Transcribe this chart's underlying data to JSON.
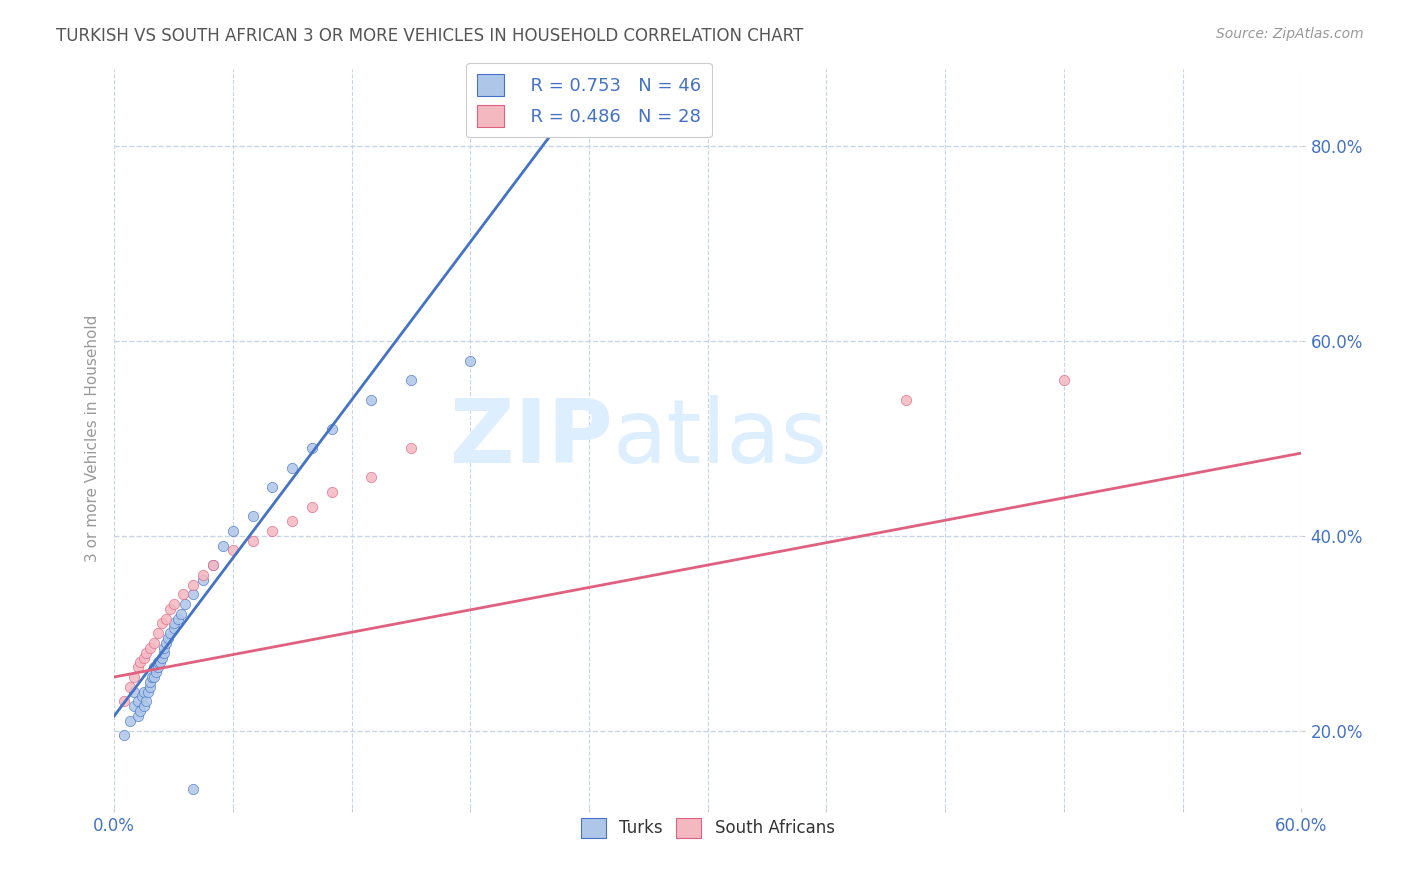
{
  "title": "TURKISH VS SOUTH AFRICAN 3 OR MORE VEHICLES IN HOUSEHOLD CORRELATION CHART",
  "source": "Source: ZipAtlas.com",
  "ylabel": "3 or more Vehicles in Household",
  "xlim": [
    0.0,
    0.6
  ],
  "ylim": [
    0.12,
    0.88
  ],
  "xticks": [
    0.0,
    0.06,
    0.12,
    0.18,
    0.24,
    0.3,
    0.36,
    0.42,
    0.48,
    0.54,
    0.6
  ],
  "yticks": [
    0.2,
    0.4,
    0.6,
    0.8
  ],
  "ytick_labels": [
    "20.0%",
    "40.0%",
    "60.0%",
    "80.0%"
  ],
  "xtick_labels_show": [
    "0.0%",
    "60.0%"
  ],
  "legend_r1": "R = 0.753",
  "legend_n1": "N = 46",
  "legend_r2": "R = 0.486",
  "legend_n2": "N = 28",
  "turks_x": [
    0.005,
    0.008,
    0.01,
    0.01,
    0.012,
    0.012,
    0.013,
    0.014,
    0.015,
    0.015,
    0.016,
    0.017,
    0.018,
    0.018,
    0.019,
    0.02,
    0.02,
    0.021,
    0.022,
    0.022,
    0.023,
    0.024,
    0.025,
    0.025,
    0.026,
    0.027,
    0.028,
    0.03,
    0.03,
    0.032,
    0.034,
    0.036,
    0.04,
    0.045,
    0.05,
    0.055,
    0.06,
    0.07,
    0.08,
    0.09,
    0.1,
    0.11,
    0.13,
    0.15,
    0.18,
    0.04
  ],
  "turks_y": [
    0.195,
    0.21,
    0.225,
    0.24,
    0.215,
    0.23,
    0.22,
    0.235,
    0.225,
    0.24,
    0.23,
    0.24,
    0.245,
    0.25,
    0.255,
    0.255,
    0.265,
    0.26,
    0.265,
    0.27,
    0.27,
    0.275,
    0.28,
    0.285,
    0.29,
    0.295,
    0.3,
    0.305,
    0.31,
    0.315,
    0.32,
    0.33,
    0.34,
    0.355,
    0.37,
    0.39,
    0.405,
    0.42,
    0.45,
    0.47,
    0.49,
    0.51,
    0.54,
    0.56,
    0.58,
    0.14
  ],
  "sa_x": [
    0.005,
    0.008,
    0.01,
    0.012,
    0.013,
    0.015,
    0.016,
    0.018,
    0.02,
    0.022,
    0.024,
    0.026,
    0.028,
    0.03,
    0.035,
    0.04,
    0.045,
    0.05,
    0.06,
    0.07,
    0.08,
    0.09,
    0.1,
    0.11,
    0.13,
    0.15,
    0.4,
    0.48
  ],
  "sa_y": [
    0.23,
    0.245,
    0.255,
    0.265,
    0.27,
    0.275,
    0.28,
    0.285,
    0.29,
    0.3,
    0.31,
    0.315,
    0.325,
    0.33,
    0.34,
    0.35,
    0.36,
    0.37,
    0.385,
    0.395,
    0.405,
    0.415,
    0.43,
    0.445,
    0.46,
    0.49,
    0.54,
    0.56
  ],
  "blue_line_x": [
    0.0,
    0.22
  ],
  "blue_line_y": [
    0.215,
    0.81
  ],
  "pink_line_x": [
    0.0,
    0.6
  ],
  "pink_line_y": [
    0.255,
    0.485
  ],
  "turks_color": "#aec6e8",
  "sa_color": "#f4b8c1",
  "blue_line_color": "#4472c4",
  "pink_line_color": "#e06080",
  "watermark_zip": "ZIP",
  "watermark_atlas": "atlas",
  "watermark_color": "#ddeeff",
  "background_color": "#ffffff",
  "grid_color": "#c8d4e8",
  "title_color": "#555555",
  "tick_label_color": "#4472c4",
  "axis_label_color": "#999999",
  "source_color": "#999999"
}
